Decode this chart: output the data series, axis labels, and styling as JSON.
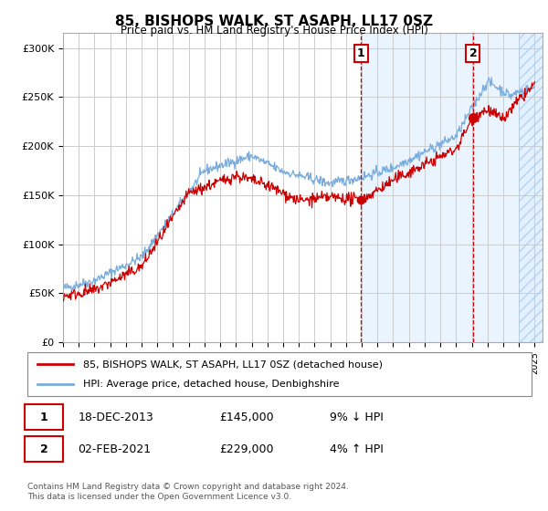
{
  "title": "85, BISHOPS WALK, ST ASAPH, LL17 0SZ",
  "subtitle": "Price paid vs. HM Land Registry's House Price Index (HPI)",
  "ylabel_ticks": [
    "£0",
    "£50K",
    "£100K",
    "£150K",
    "£200K",
    "£250K",
    "£300K"
  ],
  "ytick_vals": [
    0,
    50000,
    100000,
    150000,
    200000,
    250000,
    300000
  ],
  "ylim": [
    0,
    315000
  ],
  "xlim_start": 1995.0,
  "xlim_end": 2025.5,
  "marker1_x": 2013.96,
  "marker1_y": 145000,
  "marker2_x": 2021.08,
  "marker2_y": 229000,
  "shade_start": 2013.96,
  "shade_end": 2025.5,
  "hatch_start": 2024.0,
  "hatch_end": 2025.5,
  "legend_line1": "85, BISHOPS WALK, ST ASAPH, LL17 0SZ (detached house)",
  "legend_line2": "HPI: Average price, detached house, Denbighshire",
  "table_row1_num": "1",
  "table_row1_date": "18-DEC-2013",
  "table_row1_price": "£145,000",
  "table_row1_hpi": "9% ↓ HPI",
  "table_row2_num": "2",
  "table_row2_date": "02-FEB-2021",
  "table_row2_price": "£229,000",
  "table_row2_hpi": "4% ↑ HPI",
  "footer": "Contains HM Land Registry data © Crown copyright and database right 2024.\nThis data is licensed under the Open Government Licence v3.0.",
  "line_red_color": "#cc0000",
  "line_blue_color": "#7aaddd",
  "grid_color": "#cccccc",
  "background_color": "#ffffff",
  "shade_color": "#ddeeff"
}
